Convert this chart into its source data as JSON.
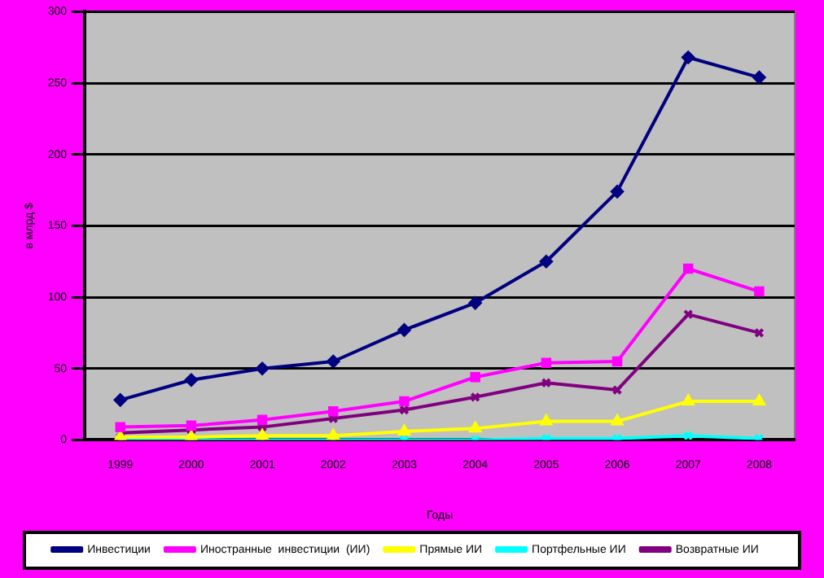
{
  "chart_data": {
    "type": "line",
    "xlabel": "Годы",
    "ylabel": "в млрд $",
    "categories": [
      "1999",
      "2000",
      "2001",
      "2002",
      "2003",
      "2004",
      "2005",
      "2006",
      "2007",
      "2008"
    ],
    "ylim": [
      0,
      300
    ],
    "yticks": [
      0,
      50,
      100,
      150,
      200,
      250,
      300
    ],
    "grid": "y",
    "legend": "bottom",
    "series": [
      {
        "name": "Инвестиции",
        "color": "#000080",
        "marker": "diamond",
        "values": [
          28,
          42,
          50,
          55,
          77,
          96,
          125,
          174,
          268,
          254
        ]
      },
      {
        "name": "Иностранные  инвестиции  (ИИ)",
        "color": "#ff00ff",
        "marker": "square",
        "values": [
          9,
          10,
          14,
          20,
          27,
          44,
          54,
          55,
          120,
          104
        ]
      },
      {
        "name": "Прямые ИИ",
        "color": "#ffff00",
        "marker": "triangle",
        "values": [
          2,
          2,
          3,
          3,
          6,
          8,
          13,
          13,
          27,
          27
        ]
      },
      {
        "name": "Портфельные ИИ",
        "color": "#00ffff",
        "marker": "cross",
        "values": [
          0,
          0,
          0,
          0,
          0,
          0,
          1,
          1,
          3,
          1
        ]
      },
      {
        "name": "Возвратные ИИ",
        "color": "#800080",
        "marker": "cross",
        "values": [
          5,
          7,
          9,
          15,
          21,
          30,
          40,
          35,
          88,
          75
        ]
      }
    ]
  }
}
